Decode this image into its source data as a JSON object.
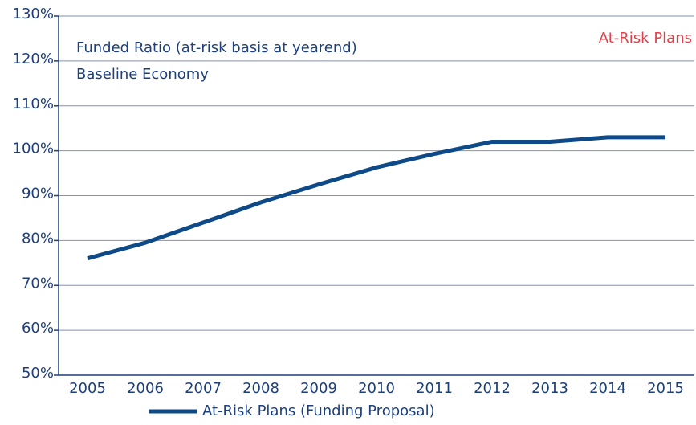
{
  "chart_data": {
    "type": "line",
    "title": "Funded Ratio (at-risk basis at yearend)",
    "subtitle": "Baseline Economy",
    "annotation": "At-Risk Plans",
    "annotation_color": "#e0404a",
    "categories": [
      "2005",
      "2006",
      "2007",
      "2008",
      "2009",
      "2010",
      "2011",
      "2012",
      "2013",
      "2014",
      "2015"
    ],
    "series": [
      {
        "name": "At-Risk Plans (Funding Proposal)",
        "color": "#0e4a87",
        "values": [
          76,
          79.5,
          84,
          88.5,
          92.5,
          96.3,
          99.3,
          102,
          102,
          103,
          103
        ]
      }
    ],
    "ylim": [
      50,
      130
    ],
    "yticks": [
      {
        "value": 50,
        "label": "50%"
      },
      {
        "value": 60,
        "label": "60%"
      },
      {
        "value": 70,
        "label": "70%"
      },
      {
        "value": 80,
        "label": "80%"
      },
      {
        "value": 90,
        "label": "90%"
      },
      {
        "value": 100,
        "label": "100%"
      },
      {
        "value": 110,
        "label": "110%"
      },
      {
        "value": 120,
        "label": "120%"
      },
      {
        "value": 130,
        "label": "130%"
      }
    ],
    "grid": true,
    "legend": "bottom"
  }
}
